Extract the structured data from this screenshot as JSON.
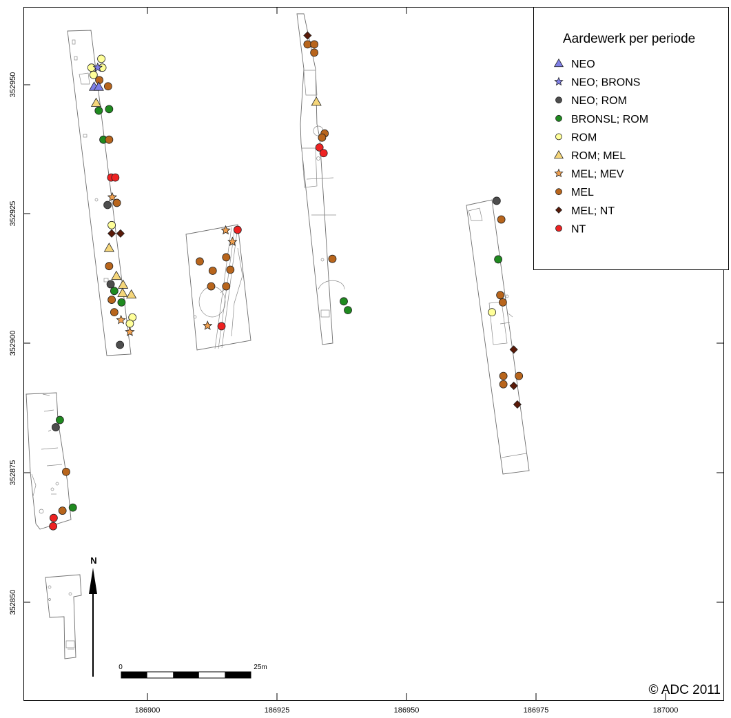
{
  "map": {
    "x_ticks": [
      "186900",
      "186925",
      "186950",
      "186975",
      "187000"
    ],
    "y_ticks": [
      "352950",
      "352925",
      "352900",
      "352875",
      "352850"
    ]
  },
  "legend": {
    "title": "Aardewerk per periode",
    "items": [
      {
        "label": "NEO",
        "symbol": "triangle",
        "color": "#7f7fe6"
      },
      {
        "label": "NEO; BRONS",
        "symbol": "star",
        "color": "#7f7fe6"
      },
      {
        "label": "NEO; ROM",
        "symbol": "circle",
        "color": "#4d4d4d"
      },
      {
        "label": "BRONSL; ROM",
        "symbol": "circle",
        "color": "#1f8a1f"
      },
      {
        "label": "ROM",
        "symbol": "circle",
        "color": "#ffff99"
      },
      {
        "label": "ROM; MEL",
        "symbol": "triangle",
        "color": "#f5d67a"
      },
      {
        "label": "MEL; MEV",
        "symbol": "star",
        "color": "#f0a050"
      },
      {
        "label": "MEL",
        "symbol": "circle",
        "color": "#b8651c"
      },
      {
        "label": "MEL; NT",
        "symbol": "diamond",
        "color": "#5a1a08"
      },
      {
        "label": "NT",
        "symbol": "circle",
        "color": "#ee2222"
      }
    ]
  },
  "finds": [
    {
      "x": 186889.2,
      "y": 352953.3,
      "category": "ROM"
    },
    {
      "x": 186891.1,
      "y": 352955.0,
      "category": "ROM"
    },
    {
      "x": 186891.3,
      "y": 352953.3,
      "category": "ROM"
    },
    {
      "x": 186889.6,
      "y": 352951.9,
      "category": "ROM"
    },
    {
      "x": 186890.4,
      "y": 352953.3,
      "category": "NEO; BRONS"
    },
    {
      "x": 186890.7,
      "y": 352950.9,
      "category": "MEL"
    },
    {
      "x": 186889.7,
      "y": 352949.6,
      "category": "NEO"
    },
    {
      "x": 186890.6,
      "y": 352949.6,
      "category": "NEO"
    },
    {
      "x": 186892.4,
      "y": 352949.7,
      "category": "MEL"
    },
    {
      "x": 186890.1,
      "y": 352946.5,
      "category": "ROM; MEL"
    },
    {
      "x": 186890.6,
      "y": 352945.0,
      "category": "BRONSL; ROM"
    },
    {
      "x": 186892.6,
      "y": 352945.3,
      "category": "BRONSL; ROM"
    },
    {
      "x": 186891.5,
      "y": 352939.4,
      "category": "BRONSL; ROM"
    },
    {
      "x": 186892.6,
      "y": 352939.4,
      "category": "MEL"
    },
    {
      "x": 186893.0,
      "y": 352932.1,
      "category": "NT"
    },
    {
      "x": 186893.8,
      "y": 352932.1,
      "category": "NT"
    },
    {
      "x": 186892.3,
      "y": 352926.8,
      "category": "NEO; ROM"
    },
    {
      "x": 186893.2,
      "y": 352928.3,
      "category": "MEL; MEV"
    },
    {
      "x": 186894.1,
      "y": 352927.2,
      "category": "MEL"
    },
    {
      "x": 186893.1,
      "y": 352922.9,
      "category": "ROM"
    },
    {
      "x": 186893.1,
      "y": 352921.3,
      "category": "MEL; NT"
    },
    {
      "x": 186894.8,
      "y": 352921.3,
      "category": "MEL; NT"
    },
    {
      "x": 186892.6,
      "y": 352918.5,
      "category": "ROM; MEL"
    },
    {
      "x": 186892.6,
      "y": 352915.0,
      "category": "MEL"
    },
    {
      "x": 186894.0,
      "y": 352913.1,
      "category": "ROM; MEL"
    },
    {
      "x": 186895.3,
      "y": 352911.4,
      "category": "ROM; MEL"
    },
    {
      "x": 186892.9,
      "y": 352911.5,
      "category": "NEO; ROM"
    },
    {
      "x": 186893.6,
      "y": 352910.2,
      "category": "BRONSL; ROM"
    },
    {
      "x": 186895.2,
      "y": 352909.8,
      "category": "ROM; MEL"
    },
    {
      "x": 186896.9,
      "y": 352909.5,
      "category": "ROM; MEL"
    },
    {
      "x": 186893.1,
      "y": 352908.5,
      "category": "MEL"
    },
    {
      "x": 186895.0,
      "y": 352908.0,
      "category": "BRONSL; ROM"
    },
    {
      "x": 186893.6,
      "y": 352906.1,
      "category": "MEL"
    },
    {
      "x": 186897.1,
      "y": 352905.1,
      "category": "ROM"
    },
    {
      "x": 186894.9,
      "y": 352904.6,
      "category": "MEL; MEV"
    },
    {
      "x": 186896.6,
      "y": 352903.9,
      "category": "ROM"
    },
    {
      "x": 186896.6,
      "y": 352902.3,
      "category": "MEL; MEV"
    },
    {
      "x": 186894.7,
      "y": 352899.8,
      "category": "NEO; ROM"
    },
    {
      "x": 186882.3,
      "y": 352883.9,
      "category": "NEO; ROM"
    },
    {
      "x": 186883.1,
      "y": 352885.3,
      "category": "BRONSL; ROM"
    },
    {
      "x": 186884.3,
      "y": 352875.3,
      "category": "MEL"
    },
    {
      "x": 186883.6,
      "y": 352867.8,
      "category": "MEL"
    },
    {
      "x": 186885.6,
      "y": 352868.4,
      "category": "BRONSL; ROM"
    },
    {
      "x": 186881.9,
      "y": 352866.4,
      "category": "NT"
    },
    {
      "x": 186881.8,
      "y": 352864.8,
      "category": "NT"
    },
    {
      "x": 186910.1,
      "y": 352915.9,
      "category": "MEL"
    },
    {
      "x": 186912.6,
      "y": 352914.1,
      "category": "MEL"
    },
    {
      "x": 186915.2,
      "y": 352916.7,
      "category": "MEL"
    },
    {
      "x": 186916.0,
      "y": 352914.3,
      "category": "MEL"
    },
    {
      "x": 186912.3,
      "y": 352911.1,
      "category": "MEL"
    },
    {
      "x": 186915.2,
      "y": 352911.1,
      "category": "MEL"
    },
    {
      "x": 186915.1,
      "y": 352921.9,
      "category": "MEL; MEV"
    },
    {
      "x": 186916.4,
      "y": 352919.7,
      "category": "MEL; MEV"
    },
    {
      "x": 186917.4,
      "y": 352922.0,
      "category": "NT"
    },
    {
      "x": 186911.6,
      "y": 352903.5,
      "category": "MEL; MEV"
    },
    {
      "x": 186914.3,
      "y": 352903.4,
      "category": "NT"
    },
    {
      "x": 186930.9,
      "y": 352959.5,
      "category": "MEL; NT"
    },
    {
      "x": 186930.9,
      "y": 352957.8,
      "category": "MEL"
    },
    {
      "x": 186932.2,
      "y": 352957.8,
      "category": "MEL"
    },
    {
      "x": 186932.2,
      "y": 352956.2,
      "category": "MEL"
    },
    {
      "x": 186932.6,
      "y": 352946.7,
      "category": "ROM; MEL"
    },
    {
      "x": 186934.2,
      "y": 352940.6,
      "category": "MEL"
    },
    {
      "x": 186933.7,
      "y": 352939.8,
      "category": "MEL"
    },
    {
      "x": 186933.2,
      "y": 352937.9,
      "category": "NT"
    },
    {
      "x": 186934.0,
      "y": 352936.8,
      "category": "NT"
    },
    {
      "x": 186935.7,
      "y": 352916.4,
      "category": "MEL"
    },
    {
      "x": 186937.9,
      "y": 352908.2,
      "category": "BRONSL; ROM"
    },
    {
      "x": 186938.7,
      "y": 352906.5,
      "category": "BRONSL; ROM"
    },
    {
      "x": 186967.4,
      "y": 352927.6,
      "category": "NEO; ROM"
    },
    {
      "x": 186968.3,
      "y": 352924.0,
      "category": "MEL"
    },
    {
      "x": 186967.7,
      "y": 352916.3,
      "category": "BRONSL; ROM"
    },
    {
      "x": 186968.1,
      "y": 352909.4,
      "category": "MEL"
    },
    {
      "x": 186968.6,
      "y": 352908.0,
      "category": "MEL"
    },
    {
      "x": 186966.5,
      "y": 352906.1,
      "category": "ROM"
    },
    {
      "x": 186970.7,
      "y": 352898.9,
      "category": "MEL; NT"
    },
    {
      "x": 186968.7,
      "y": 352893.8,
      "category": "MEL"
    },
    {
      "x": 186971.7,
      "y": 352893.8,
      "category": "MEL"
    },
    {
      "x": 186968.7,
      "y": 352892.2,
      "category": "MEL"
    },
    {
      "x": 186970.7,
      "y": 352891.9,
      "category": "MEL; NT"
    },
    {
      "x": 186971.4,
      "y": 352888.3,
      "category": "MEL; NT"
    }
  ],
  "north_label": "N",
  "scale_bar": {
    "start_label": "0",
    "end_label": "25m"
  },
  "copyright": "© ADC 2011"
}
